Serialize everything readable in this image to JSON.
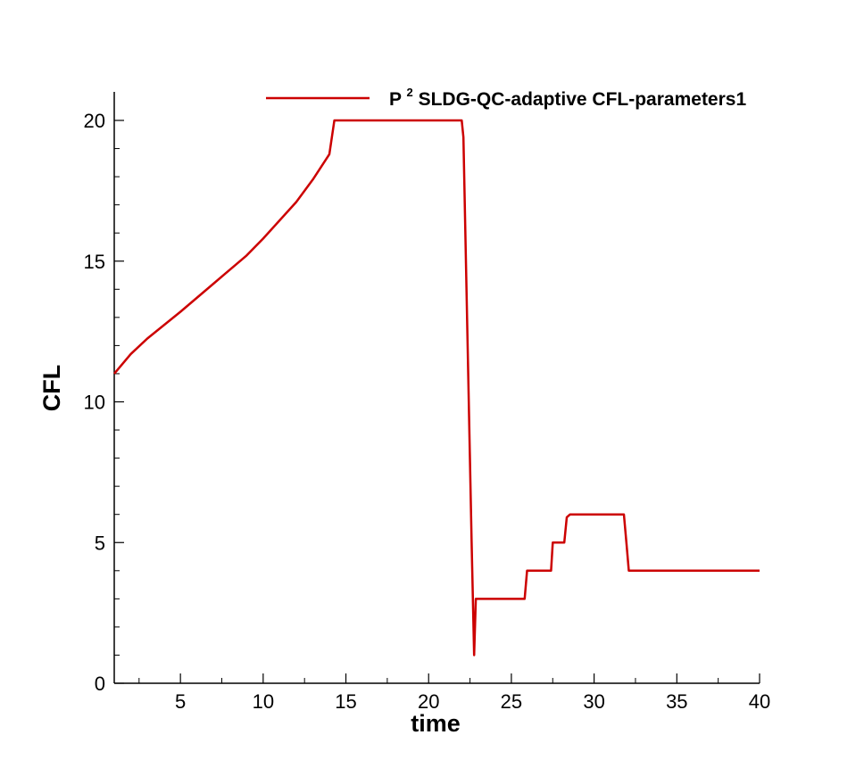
{
  "chart_data": {
    "type": "line",
    "title": "",
    "xlabel": "time",
    "ylabel": "CFL",
    "xlim": [
      1,
      40
    ],
    "ylim": [
      0,
      21
    ],
    "xticks_major": [
      5,
      10,
      15,
      20,
      25,
      30,
      35,
      40
    ],
    "xticks_minor": [
      2.5,
      7.5,
      12.5,
      17.5,
      22.5,
      27.5,
      32.5,
      37.5
    ],
    "yticks_major": [
      0,
      5,
      10,
      15,
      20
    ],
    "yticks_minor": [
      1,
      2,
      3,
      4,
      6,
      7,
      8,
      9,
      11,
      12,
      13,
      14,
      16,
      17,
      18,
      19
    ],
    "grid": false,
    "legend_position": "top-right",
    "legend_label_base": "P",
    "legend_label_sup": "2",
    "legend_label_rest": " SLDG-QC-adaptive CFL-parameters1",
    "series": [
      {
        "name": "P² SLDG-QC-adaptive CFL-parameters1",
        "color": "#cc0000",
        "x": [
          1,
          2,
          3,
          5,
          7,
          9,
          10,
          12,
          13,
          14,
          14.3,
          20,
          22,
          22.1,
          22.6,
          22.75,
          22.85,
          23.0,
          25.8,
          25.95,
          27.4,
          27.5,
          28.2,
          28.35,
          28.55,
          31.8,
          31.95,
          32.1,
          40
        ],
        "y": [
          11,
          11.7,
          12.25,
          13.2,
          14.2,
          15.2,
          15.8,
          17.1,
          17.9,
          18.8,
          20,
          20,
          20,
          19.4,
          5,
          1,
          3,
          3,
          3,
          4,
          4,
          5,
          5,
          5.9,
          6,
          6,
          5,
          4,
          4
        ]
      }
    ]
  }
}
